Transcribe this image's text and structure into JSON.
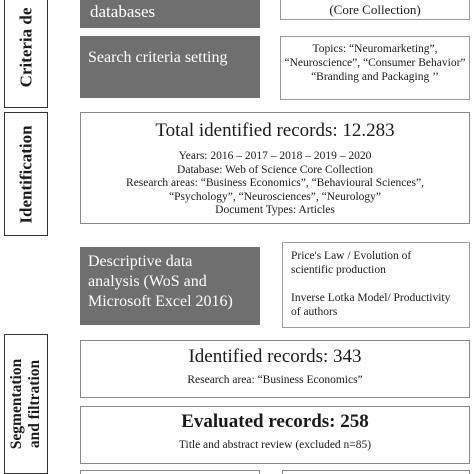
{
  "stages": {
    "criteria_label": "Criteria de",
    "identification_label": "Identification",
    "segmentation_label_1": "Segmentation",
    "segmentation_label_2": "and filtration"
  },
  "criteria": {
    "databases_label": "databases",
    "core_collection": "(Core Collection)",
    "search_criteria_label": "Search criteria setting",
    "topics_line1": "Topics: “Neuromarketing”,",
    "topics_line2": "“Neuroscience”, “Consumer Behavior”",
    "topics_line3": "“Branding and Packaging ’’"
  },
  "identification": {
    "title": "Total identified records: 12.283",
    "line1": "Years: 2016 – 2017 – 2018 – 2019 – 2020",
    "line2": "Database: Web of Science Core Collection",
    "line3": "Research areas: “Business Economics”, “Behavioural Sciences”,",
    "line4": "“Psychology”, “Neurosciences”, “Neurology”",
    "line5": "Document Types: Articles"
  },
  "descriptive": {
    "line1": "Descriptive data",
    "line2": "analysis (WoS and",
    "line3": "Microsoft Excel 2016)",
    "price_line1": "Price's Law / Evolution of",
    "price_line2": "scientific production",
    "lotka_line1": "Inverse Lotka Model/ Productivity",
    "lotka_line2": "of authors"
  },
  "segmentation": {
    "identified_title": "Identified records: 343",
    "identified_sub": "Research area: “Business Economics”",
    "evaluated_title": "Evaluated records: 258",
    "evaluated_sub": "Title and abstract review (excluded n=85)"
  }
}
